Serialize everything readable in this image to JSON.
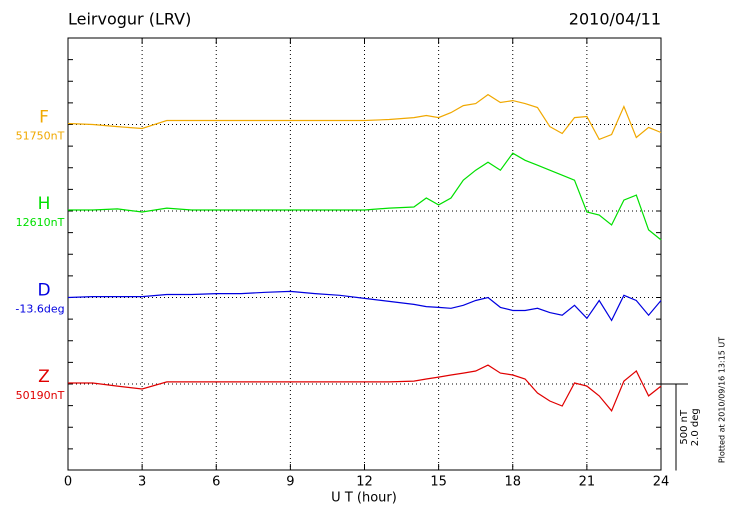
{
  "chart_data": {
    "type": "line",
    "title": "Leirvogur (LRV)",
    "date": "2010/04/11",
    "x_label": "U T (hour)",
    "footnote": "Plotted at 2010/09/16 13:15 UT",
    "x": [
      0,
      1,
      2,
      3,
      4,
      5,
      6,
      7,
      8,
      9,
      10,
      11,
      12,
      13,
      14,
      14.5,
      15,
      15.5,
      16,
      16.5,
      17,
      17.5,
      18,
      18.5,
      19,
      19.5,
      20,
      20.5,
      21,
      21.5,
      22,
      22.5,
      23,
      23.5,
      24
    ],
    "xlim": [
      0,
      24
    ],
    "xticks": [
      0,
      3,
      6,
      9,
      12,
      15,
      18,
      21,
      24
    ],
    "grid": true,
    "scale": [
      {
        "value": 500,
        "label": "500 nT"
      },
      {
        "value": 2.0,
        "label": "2.0 deg"
      }
    ],
    "series": [
      {
        "name": "F",
        "color": "#f0a800",
        "baseline": {
          "value": 51750,
          "label": "51750nT"
        },
        "values": [
          51756,
          51750,
          51738,
          51727,
          51773,
          51773,
          51773,
          51773,
          51773,
          51773,
          51773,
          51773,
          51773,
          51779,
          51790,
          51802,
          51790,
          51819,
          51859,
          51871,
          51923,
          51877,
          51888,
          51871,
          51848,
          51738,
          51698,
          51790,
          51796,
          51664,
          51692,
          51854,
          51675,
          51733,
          51704
        ]
      },
      {
        "name": "H",
        "color": "#00e000",
        "baseline": {
          "value": 12610,
          "label": "12610nT"
        },
        "values": [
          12616,
          12616,
          12622,
          12604,
          12627,
          12616,
          12616,
          12616,
          12616,
          12616,
          12616,
          12616,
          12616,
          12627,
          12633,
          12685,
          12645,
          12685,
          12788,
          12846,
          12892,
          12846,
          12944,
          12903,
          12875,
          12846,
          12817,
          12788,
          12604,
          12587,
          12529,
          12673,
          12702,
          12501,
          12443
        ]
      },
      {
        "name": "D",
        "color": "#0000e0",
        "baseline": {
          "value": -13.6,
          "label": "-13.6deg"
        },
        "values": [
          -13.6,
          -13.58,
          -13.58,
          -13.58,
          -13.53,
          -13.53,
          -13.51,
          -13.51,
          -13.48,
          -13.46,
          -13.51,
          -13.55,
          -13.62,
          -13.69,
          -13.76,
          -13.81,
          -13.83,
          -13.85,
          -13.78,
          -13.67,
          -13.6,
          -13.83,
          -13.9,
          -13.9,
          -13.85,
          -13.95,
          -14.01,
          -13.78,
          -14.08,
          -13.67,
          -14.13,
          -13.55,
          -13.67,
          -14.01,
          -13.67
        ]
      },
      {
        "name": "Z",
        "color": "#e00000",
        "baseline": {
          "value": 50190,
          "label": "50190nT"
        },
        "values": [
          50196,
          50196,
          50178,
          50161,
          50202,
          50202,
          50202,
          50202,
          50202,
          50202,
          50202,
          50202,
          50202,
          50202,
          50207,
          50219,
          50230,
          50242,
          50253,
          50265,
          50299,
          50253,
          50242,
          50219,
          50138,
          50092,
          50063,
          50196,
          50178,
          50121,
          50035,
          50207,
          50265,
          50121,
          50178
        ]
      }
    ]
  }
}
